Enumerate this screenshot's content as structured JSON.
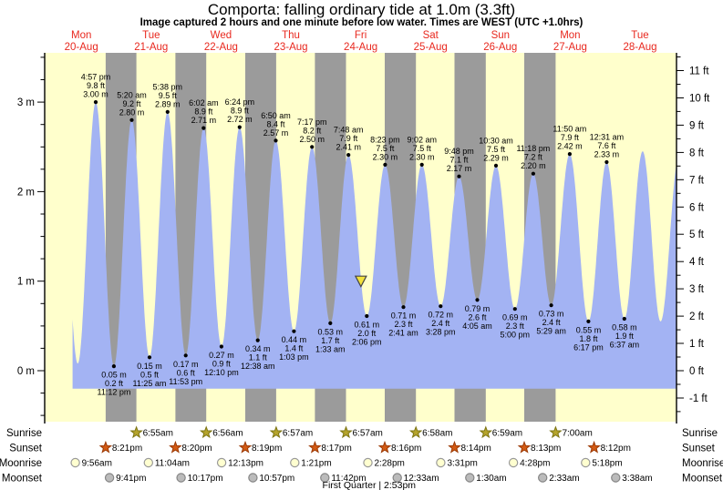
{
  "title": "Comporta: falling  ordinary tide at 1.0m (3.3ft)",
  "subtitle": "Image captured 2 hours and one minute before low water. Times are WEST (UTC +1.0hrs)",
  "chart_data": {
    "type": "area",
    "x_days": [
      {
        "name": "Mon",
        "date": "20-Aug"
      },
      {
        "name": "Tue",
        "date": "21-Aug"
      },
      {
        "name": "Wed",
        "date": "22-Aug"
      },
      {
        "name": "Thu",
        "date": "23-Aug"
      },
      {
        "name": "Fri",
        "date": "24-Aug"
      },
      {
        "name": "Sat",
        "date": "25-Aug"
      },
      {
        "name": "Sun",
        "date": "26-Aug"
      },
      {
        "name": "Mon",
        "date": "27-Aug"
      },
      {
        "name": "Tue",
        "date": "28-Aug"
      }
    ],
    "y_axis_left": {
      "unit": "m",
      "ticks": [
        {
          "v": 0,
          "label": "0 m"
        },
        {
          "v": 1,
          "label": "1 m"
        },
        {
          "v": 2,
          "label": "2 m"
        },
        {
          "v": 3,
          "label": "3 m"
        }
      ]
    },
    "y_axis_right": {
      "unit": "ft",
      "ticks": [
        {
          "v": -1,
          "label": "-1 ft"
        },
        {
          "v": 0,
          "label": "0 ft"
        },
        {
          "v": 1,
          "label": "1 ft"
        },
        {
          "v": 2,
          "label": "2 ft"
        },
        {
          "v": 3,
          "label": "3 ft"
        },
        {
          "v": 4,
          "label": "4 ft"
        },
        {
          "v": 5,
          "label": "5 ft"
        },
        {
          "v": 6,
          "label": "6 ft"
        },
        {
          "v": 7,
          "label": "7 ft"
        },
        {
          "v": 8,
          "label": "8 ft"
        },
        {
          "v": 9,
          "label": "9 ft"
        },
        {
          "v": 10,
          "label": "10 ft"
        },
        {
          "v": 11,
          "label": "11 ft"
        }
      ]
    },
    "high_tides": [
      {
        "time": "4:57 pm",
        "ft": "9.8 ft",
        "m": "3.00 m",
        "dh": 16.95,
        "value_m": 3.0
      },
      {
        "time": "5:20 am",
        "ft": "9.2 ft",
        "m": "2.80 m",
        "dh": 29.33,
        "value_m": 2.8
      },
      {
        "time": "5:38 pm",
        "ft": "9.5 ft",
        "m": "2.89 m",
        "dh": 41.63,
        "value_m": 2.89
      },
      {
        "time": "6:02 am",
        "ft": "8.9 ft",
        "m": "2.71 m",
        "dh": 54.03,
        "value_m": 2.71
      },
      {
        "time": "6:24 pm",
        "ft": "8.9 ft",
        "m": "2.72 m",
        "dh": 66.4,
        "value_m": 2.72
      },
      {
        "time": "6:50 am",
        "ft": "8.4 ft",
        "m": "2.57 m",
        "dh": 78.83,
        "value_m": 2.57
      },
      {
        "time": "7:17 pm",
        "ft": "8.2 ft",
        "m": "2.50 m",
        "dh": 91.28,
        "value_m": 2.5
      },
      {
        "time": "7:48 am",
        "ft": "7.9 ft",
        "m": "2.41 m",
        "dh": 103.8,
        "value_m": 2.41
      },
      {
        "time": "8:23 pm",
        "ft": "7.5 ft",
        "m": "2.30 m",
        "dh": 116.38,
        "value_m": 2.3
      },
      {
        "time": "9:02 am",
        "ft": "7.5 ft",
        "m": "2.30 m",
        "dh": 129.03,
        "value_m": 2.3
      },
      {
        "time": "9:48 pm",
        "ft": "7.1 ft",
        "m": "2.17 m",
        "dh": 141.8,
        "value_m": 2.17
      },
      {
        "time": "10:30 am",
        "ft": "7.5 ft",
        "m": "2.29 m",
        "dh": 154.5,
        "value_m": 2.29
      },
      {
        "time": "11:18 pm",
        "ft": "7.2 ft",
        "m": "2.20 m",
        "dh": 167.3,
        "value_m": 2.2
      },
      {
        "time": "11:50 am",
        "ft": "7.9 ft",
        "m": "2.42 m",
        "dh": 179.83,
        "value_m": 2.42
      },
      {
        "time": "12:31 am",
        "ft": "7.6 ft",
        "m": "2.33 m",
        "dh": 192.52,
        "value_m": 2.33
      }
    ],
    "low_tides": [
      {
        "m": "0.05 m",
        "ft": "0.2 ft",
        "time": "11:12 pm",
        "dh": 23.2,
        "value_m": 0.05
      },
      {
        "m": "0.15 m",
        "ft": "0.5 ft",
        "time": "11:25 am",
        "dh": 35.42,
        "value_m": 0.15
      },
      {
        "m": "0.17 m",
        "ft": "0.6 ft",
        "time": "11:53 pm",
        "dh": 47.88,
        "value_m": 0.17
      },
      {
        "m": "0.27 m",
        "ft": "0.9 ft",
        "time": "12:10 pm",
        "dh": 60.17,
        "value_m": 0.27
      },
      {
        "m": "0.34 m",
        "ft": "1.1 ft",
        "time": "12:38 am",
        "dh": 72.63,
        "value_m": 0.34
      },
      {
        "m": "0.44 m",
        "ft": "1.4 ft",
        "time": "1:03 pm",
        "dh": 85.05,
        "value_m": 0.44
      },
      {
        "m": "0.53 m",
        "ft": "1.7 ft",
        "time": "1:33 am",
        "dh": 97.55,
        "value_m": 0.53
      },
      {
        "m": "0.61 m",
        "ft": "2.0 ft",
        "time": "2:06 pm",
        "dh": 110.1,
        "value_m": 0.61
      },
      {
        "m": "0.71 m",
        "ft": "2.3 ft",
        "time": "2:41 am",
        "dh": 122.68,
        "value_m": 0.71
      },
      {
        "m": "0.72 m",
        "ft": "2.4 ft",
        "time": "3:28 pm",
        "dh": 135.47,
        "value_m": 0.72
      },
      {
        "m": "0.79 m",
        "ft": "2.6 ft",
        "time": "4:05 am",
        "dh": 148.08,
        "value_m": 0.79
      },
      {
        "m": "0.69 m",
        "ft": "2.3 ft",
        "time": "5:00 pm",
        "dh": 161.0,
        "value_m": 0.69
      },
      {
        "m": "0.73 m",
        "ft": "2.4 ft",
        "time": "5:29 am",
        "dh": 173.48,
        "value_m": 0.73
      },
      {
        "m": "0.55 m",
        "ft": "1.8 ft",
        "time": "6:17 pm",
        "dh": 186.28,
        "value_m": 0.55
      },
      {
        "m": "0.58 m",
        "ft": "1.9 ft",
        "time": "6:37 am",
        "dh": 198.62,
        "value_m": 0.58
      }
    ],
    "offscreen_extremes_m": {
      "pre": [
        {
          "dh": 4.3,
          "v": 2.9
        },
        {
          "dh": 10.78,
          "v": 0.08
        }
      ],
      "post": [
        {
          "dh": 204.9,
          "v": 2.45
        },
        {
          "dh": 211.05,
          "v": 0.55
        },
        {
          "dh": 217.4,
          "v": 2.4
        }
      ]
    },
    "visible_time_range_dh": [
      9.0,
      216.55
    ],
    "night_bands_dh": [
      [
        20.35,
        30.92
      ],
      [
        44.33,
        54.93
      ],
      [
        68.32,
        78.95
      ],
      [
        92.28,
        102.95
      ],
      [
        116.27,
        126.97
      ],
      [
        140.23,
        150.98
      ],
      [
        164.22,
        175.0
      ]
    ],
    "current_level_marker": {
      "value_m": 1.0,
      "dh": 108.08
    },
    "colors": {
      "day_bg": "#FFFFCC",
      "night_bg": "#9B9B9B",
      "water": "#A3B3F3",
      "day_label": "#E8281E",
      "annotation": "#000000",
      "marker_fill": "#F2E13C",
      "marker_stroke": "#444444"
    }
  },
  "astro": {
    "rows": [
      {
        "label": "Sunrise",
        "icon": "sunrise-star",
        "color": "#B5A42C",
        "stroke": "#7D7412",
        "events": [
          {
            "time": "6:55am",
            "dh": 30.92
          },
          {
            "time": "6:56am",
            "dh": 54.93
          },
          {
            "time": "6:57am",
            "dh": 78.95
          },
          {
            "time": "6:57am",
            "dh": 102.95
          },
          {
            "time": "6:58am",
            "dh": 126.97
          },
          {
            "time": "6:59am",
            "dh": 150.98
          },
          {
            "time": "7:00am",
            "dh": 175.0
          }
        ]
      },
      {
        "label": "Sunset",
        "icon": "sunset-star",
        "color": "#D25A14",
        "stroke": "#9C3A05",
        "events": [
          {
            "time": "8:21pm",
            "dh": 20.35
          },
          {
            "time": "8:20pm",
            "dh": 44.33
          },
          {
            "time": "8:19pm",
            "dh": 68.32
          },
          {
            "time": "8:17pm",
            "dh": 92.28
          },
          {
            "time": "8:16pm",
            "dh": 116.27
          },
          {
            "time": "8:14pm",
            "dh": 140.23
          },
          {
            "time": "8:13pm",
            "dh": 164.22
          },
          {
            "time": "8:12pm",
            "dh": 188.2
          }
        ]
      },
      {
        "label": "Moonrise",
        "icon": "moonrise-circle",
        "color": "#FFFFD0",
        "stroke": "#999999",
        "events": [
          {
            "time": "9:56am",
            "dh": 9.93
          },
          {
            "time": "11:04am",
            "dh": 35.07
          },
          {
            "time": "12:13pm",
            "dh": 60.22
          },
          {
            "time": "1:21pm",
            "dh": 85.35
          },
          {
            "time": "2:28pm",
            "dh": 110.47
          },
          {
            "time": "3:31pm",
            "dh": 135.52
          },
          {
            "time": "4:28pm",
            "dh": 160.47
          },
          {
            "time": "5:18pm",
            "dh": 185.3
          }
        ]
      },
      {
        "label": "Moonset",
        "icon": "moonset-circle",
        "color": "#BBBBBB",
        "stroke": "#858585",
        "events": [
          {
            "time": "9:41pm",
            "dh": 21.68
          },
          {
            "time": "10:17pm",
            "dh": 46.28
          },
          {
            "time": "10:57pm",
            "dh": 70.95
          },
          {
            "time": "11:42pm",
            "dh": 95.7
          },
          {
            "time": "12:33am",
            "dh": 120.55
          },
          {
            "time": "1:30am",
            "dh": 145.5
          },
          {
            "time": "2:33am",
            "dh": 170.55
          },
          {
            "time": "3:38am",
            "dh": 195.63
          }
        ]
      }
    ],
    "footer": {
      "text": "First Quarter | 2:53pm",
      "dh": 110.88
    }
  }
}
